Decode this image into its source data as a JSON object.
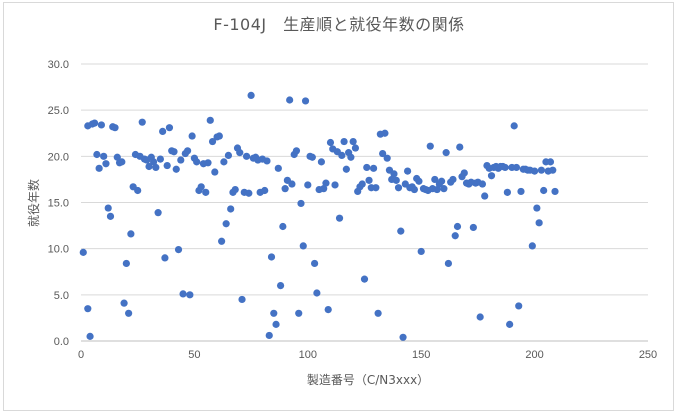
{
  "chart_data": {
    "type": "scatter",
    "title": "F-104J　生産順と就役年数の関係",
    "xlabel": "製造番号（C/N3xxx）",
    "ylabel": "就役年数",
    "xlim": [
      0,
      250
    ],
    "ylim": [
      0,
      30
    ],
    "x_ticks": [
      "0",
      "50",
      "100",
      "150",
      "200",
      "250"
    ],
    "y_ticks": [
      "0.0",
      "5.0",
      "10.0",
      "15.0",
      "20.0",
      "25.0",
      "30.0"
    ],
    "grid": "horizontal",
    "marker_color": "#4472c4",
    "points": [
      [
        1,
        9.6
      ],
      [
        3,
        3.5
      ],
      [
        3,
        23.3
      ],
      [
        4,
        0.5
      ],
      [
        5,
        23.5
      ],
      [
        6,
        23.6
      ],
      [
        7,
        20.2
      ],
      [
        8,
        18.7
      ],
      [
        9,
        23.4
      ],
      [
        10,
        20.0
      ],
      [
        11,
        19.2
      ],
      [
        12,
        14.4
      ],
      [
        13,
        13.5
      ],
      [
        14,
        23.2
      ],
      [
        15,
        23.1
      ],
      [
        16,
        19.9
      ],
      [
        17,
        19.3
      ],
      [
        18,
        19.4
      ],
      [
        19,
        4.1
      ],
      [
        20,
        8.4
      ],
      [
        21,
        3.0
      ],
      [
        22,
        11.6
      ],
      [
        23,
        16.7
      ],
      [
        24,
        20.2
      ],
      [
        25,
        16.3
      ],
      [
        26,
        20.0
      ],
      [
        27,
        23.7
      ],
      [
        28,
        19.7
      ],
      [
        29,
        19.6
      ],
      [
        30,
        18.9
      ],
      [
        31,
        19.9
      ],
      [
        32,
        19.4
      ],
      [
        33,
        18.8
      ],
      [
        34,
        13.9
      ],
      [
        35,
        19.7
      ],
      [
        36,
        22.7
      ],
      [
        37,
        9.0
      ],
      [
        38,
        19.0
      ],
      [
        39,
        23.1
      ],
      [
        40,
        20.6
      ],
      [
        41,
        20.5
      ],
      [
        42,
        18.6
      ],
      [
        43,
        9.9
      ],
      [
        44,
        19.6
      ],
      [
        45,
        5.1
      ],
      [
        46,
        20.3
      ],
      [
        47,
        20.6
      ],
      [
        48,
        5.0
      ],
      [
        49,
        22.2
      ],
      [
        50,
        19.8
      ],
      [
        51,
        19.4
      ],
      [
        52,
        16.3
      ],
      [
        53,
        16.7
      ],
      [
        54,
        19.2
      ],
      [
        55,
        16.1
      ],
      [
        56,
        19.3
      ],
      [
        57,
        23.9
      ],
      [
        58,
        21.6
      ],
      [
        59,
        18.3
      ],
      [
        60,
        22.1
      ],
      [
        61,
        22.2
      ],
      [
        62,
        10.8
      ],
      [
        63,
        19.4
      ],
      [
        64,
        12.7
      ],
      [
        65,
        20.1
      ],
      [
        66,
        14.3
      ],
      [
        67,
        16.1
      ],
      [
        68,
        16.4
      ],
      [
        69,
        20.9
      ],
      [
        70,
        20.4
      ],
      [
        71,
        4.5
      ],
      [
        72,
        16.1
      ],
      [
        73,
        20.0
      ],
      [
        74,
        16.0
      ],
      [
        75,
        26.6
      ],
      [
        76,
        19.8
      ],
      [
        77,
        19.9
      ],
      [
        78,
        19.6
      ],
      [
        79,
        16.1
      ],
      [
        80,
        19.7
      ],
      [
        81,
        16.3
      ],
      [
        82,
        19.5
      ],
      [
        83,
        0.6
      ],
      [
        84,
        9.1
      ],
      [
        85,
        3.0
      ],
      [
        86,
        1.8
      ],
      [
        87,
        18.7
      ],
      [
        88,
        6.0
      ],
      [
        89,
        12.4
      ],
      [
        90,
        16.5
      ],
      [
        91,
        17.4
      ],
      [
        92,
        26.1
      ],
      [
        93,
        17.0
      ],
      [
        94,
        20.2
      ],
      [
        95,
        20.6
      ],
      [
        96,
        3.0
      ],
      [
        97,
        14.9
      ],
      [
        98,
        10.3
      ],
      [
        99,
        26.0
      ],
      [
        100,
        16.9
      ],
      [
        101,
        20.0
      ],
      [
        102,
        19.9
      ],
      [
        103,
        8.4
      ],
      [
        104,
        5.2
      ],
      [
        105,
        16.4
      ],
      [
        106,
        19.4
      ],
      [
        107,
        16.5
      ],
      [
        108,
        17.1
      ],
      [
        109,
        3.4
      ],
      [
        110,
        21.5
      ],
      [
        111,
        20.8
      ],
      [
        112,
        16.9
      ],
      [
        113,
        20.5
      ],
      [
        114,
        13.3
      ],
      [
        115,
        20.1
      ],
      [
        116,
        21.6
      ],
      [
        117,
        18.6
      ],
      [
        118,
        20.4
      ],
      [
        119,
        19.9
      ],
      [
        120,
        21.6
      ],
      [
        121,
        20.9
      ],
      [
        122,
        16.2
      ],
      [
        123,
        16.7
      ],
      [
        124,
        17.0
      ],
      [
        125,
        6.7
      ],
      [
        126,
        18.8
      ],
      [
        127,
        17.4
      ],
      [
        128,
        16.6
      ],
      [
        129,
        18.7
      ],
      [
        130,
        16.6
      ],
      [
        131,
        3.0
      ],
      [
        132,
        22.4
      ],
      [
        133,
        20.3
      ],
      [
        134,
        22.5
      ],
      [
        135,
        19.8
      ],
      [
        136,
        18.5
      ],
      [
        137,
        17.5
      ],
      [
        138,
        18.1
      ],
      [
        139,
        17.4
      ],
      [
        140,
        16.6
      ],
      [
        141,
        11.9
      ],
      [
        142,
        0.4
      ],
      [
        143,
        17.0
      ],
      [
        144,
        18.4
      ],
      [
        145,
        16.6
      ],
      [
        146,
        16.7
      ],
      [
        147,
        16.4
      ],
      [
        148,
        17.6
      ],
      [
        149,
        17.3
      ],
      [
        150,
        9.7
      ],
      [
        151,
        16.5
      ],
      [
        152,
        16.4
      ],
      [
        153,
        16.3
      ],
      [
        154,
        21.1
      ],
      [
        155,
        16.5
      ],
      [
        156,
        17.5
      ],
      [
        157,
        16.4
      ],
      [
        158,
        17.0
      ],
      [
        159,
        17.3
      ],
      [
        160,
        16.5
      ],
      [
        161,
        20.4
      ],
      [
        162,
        8.4
      ],
      [
        163,
        17.2
      ],
      [
        164,
        17.5
      ],
      [
        165,
        11.4
      ],
      [
        166,
        12.4
      ],
      [
        167,
        21.0
      ],
      [
        168,
        17.8
      ],
      [
        169,
        18.2
      ],
      [
        170,
        17.1
      ],
      [
        171,
        17.0
      ],
      [
        172,
        17.2
      ],
      [
        173,
        12.3
      ],
      [
        174,
        17.1
      ],
      [
        175,
        17.2
      ],
      [
        176,
        2.6
      ],
      [
        177,
        17.0
      ],
      [
        178,
        15.7
      ],
      [
        179,
        19.0
      ],
      [
        180,
        18.7
      ],
      [
        181,
        17.9
      ],
      [
        182,
        18.8
      ],
      [
        183,
        18.9
      ],
      [
        184,
        18.7
      ],
      [
        185,
        18.9
      ],
      [
        186,
        18.9
      ],
      [
        187,
        18.8
      ],
      [
        188,
        16.1
      ],
      [
        189,
        1.8
      ],
      [
        190,
        18.8
      ],
      [
        191,
        23.3
      ],
      [
        192,
        18.8
      ],
      [
        193,
        3.8
      ],
      [
        194,
        16.2
      ],
      [
        195,
        18.6
      ],
      [
        196,
        18.6
      ],
      [
        197,
        18.5
      ],
      [
        198,
        18.5
      ],
      [
        199,
        10.3
      ],
      [
        200,
        18.4
      ],
      [
        201,
        14.4
      ],
      [
        202,
        12.8
      ],
      [
        203,
        18.5
      ],
      [
        204,
        16.3
      ],
      [
        205,
        19.4
      ],
      [
        206,
        18.4
      ],
      [
        207,
        19.4
      ],
      [
        208,
        18.5
      ],
      [
        209,
        16.2
      ]
    ]
  }
}
